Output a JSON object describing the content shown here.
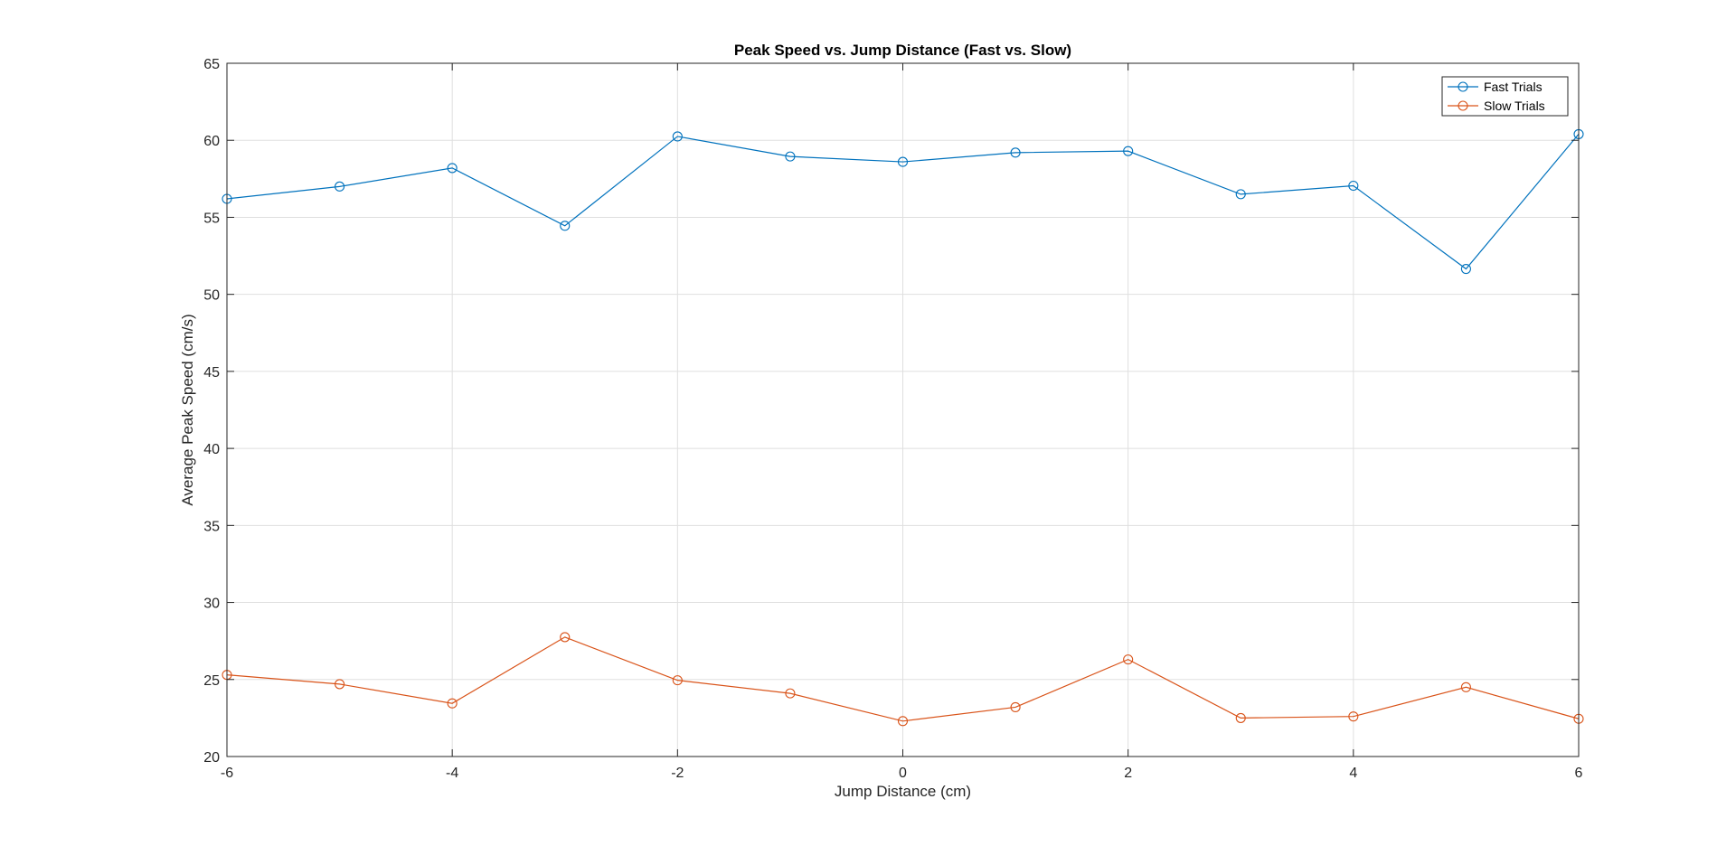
{
  "chart_data": {
    "type": "line",
    "title": "Peak Speed vs. Jump Distance (Fast vs. Slow)",
    "xlabel": "Jump Distance (cm)",
    "ylabel": "Average Peak Speed (cm/s)",
    "xlim": [
      -6,
      6
    ],
    "ylim": [
      20,
      65
    ],
    "xticks": [
      -6,
      -4,
      -2,
      0,
      2,
      4,
      6
    ],
    "yticks": [
      20,
      25,
      30,
      35,
      40,
      45,
      50,
      55,
      60,
      65
    ],
    "grid": true,
    "legend_location": "top-right",
    "x": [
      -6,
      -5,
      -4,
      -3,
      -2,
      -1,
      0,
      1,
      2,
      3,
      4,
      5,
      6
    ],
    "series": [
      {
        "name": "Fast Trials",
        "color": "#0072BD",
        "marker": "circle",
        "values": [
          56.2,
          57.0,
          58.2,
          54.45,
          60.25,
          58.95,
          58.6,
          59.2,
          59.3,
          56.5,
          57.05,
          51.65,
          60.4
        ]
      },
      {
        "name": "Slow Trials",
        "color": "#D95319",
        "marker": "circle",
        "values": [
          25.3,
          24.7,
          23.45,
          27.75,
          24.95,
          24.1,
          22.3,
          23.2,
          26.3,
          22.5,
          22.6,
          24.5,
          22.45
        ]
      }
    ]
  }
}
